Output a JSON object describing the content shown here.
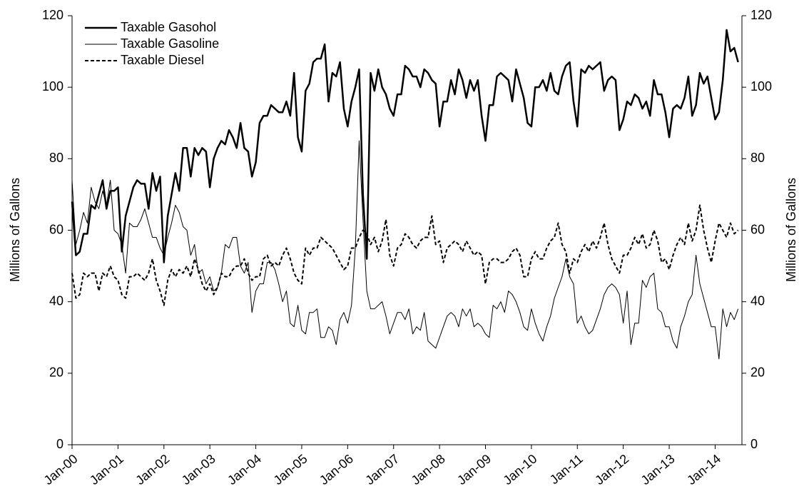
{
  "chart_data": {
    "type": "line",
    "y_label": "Millions of Gallons",
    "y2_label": "Millions of Gallons",
    "categories": [
      "Jan-00",
      null,
      null,
      null,
      null,
      null,
      null,
      null,
      null,
      null,
      null,
      null,
      "Jan-01",
      null,
      null,
      null,
      null,
      null,
      null,
      null,
      null,
      null,
      null,
      null,
      "Jan-02",
      null,
      null,
      null,
      null,
      null,
      null,
      null,
      null,
      null,
      null,
      null,
      "Jan-03",
      null,
      null,
      null,
      null,
      null,
      null,
      null,
      null,
      null,
      null,
      null,
      "Jan-04",
      null,
      null,
      null,
      null,
      null,
      null,
      null,
      null,
      null,
      null,
      null,
      "Jan-05",
      null,
      null,
      null,
      null,
      null,
      null,
      null,
      null,
      null,
      null,
      null,
      "Jan-06",
      null,
      null,
      null,
      null,
      null,
      null,
      null,
      null,
      null,
      null,
      null,
      "Jan-07",
      null,
      null,
      null,
      null,
      null,
      null,
      null,
      null,
      null,
      null,
      null,
      "Jan-08",
      null,
      null,
      null,
      null,
      null,
      null,
      null,
      null,
      null,
      null,
      null,
      "Jan-09",
      null,
      null,
      null,
      null,
      null,
      null,
      null,
      null,
      null,
      null,
      null,
      "Jan-10",
      null,
      null,
      null,
      null,
      null,
      null,
      null,
      null,
      null,
      null,
      null,
      "Jan-11",
      null,
      null,
      null,
      null,
      null,
      null,
      null,
      null,
      null,
      null,
      null,
      "Jan-12",
      null,
      null,
      null,
      null,
      null,
      null,
      null,
      null,
      null,
      null,
      null,
      "Jan-13",
      null,
      null,
      null,
      null,
      null,
      null,
      null,
      null,
      null,
      null,
      null,
      "Jan-14",
      null,
      null,
      null,
      null,
      null,
      null
    ],
    "series": [
      {
        "name": "Taxable Gasohol",
        "color": "#000000",
        "line_width": 2.5,
        "dash": "none",
        "values": [
          68,
          53,
          54,
          59,
          59,
          67,
          66,
          70,
          74,
          66,
          71,
          71,
          72,
          54,
          64,
          68,
          72,
          74,
          73,
          73,
          66,
          76,
          71,
          75,
          51,
          64,
          70,
          76,
          71,
          83,
          83,
          75,
          83,
          81,
          83,
          82,
          72,
          80,
          83,
          85,
          84,
          88,
          86,
          83,
          90,
          83,
          82,
          75,
          79,
          90,
          92,
          92,
          95,
          94,
          93,
          93,
          96,
          92,
          104,
          86,
          82,
          99,
          101,
          107,
          108,
          108,
          112,
          96,
          104,
          103,
          107,
          94,
          89,
          96,
          100,
          105,
          70,
          52,
          104,
          99,
          105,
          100,
          98,
          94,
          92,
          98,
          98,
          106,
          105,
          103,
          103,
          100,
          105,
          104,
          102,
          101,
          89,
          96,
          96,
          102,
          98,
          105,
          102,
          97,
          102,
          99,
          102,
          92,
          85,
          95,
          95,
          103,
          104,
          103,
          102,
          96,
          105,
          101,
          97,
          90,
          89,
          100,
          100,
          102,
          99,
          104,
          99,
          98,
          103,
          106,
          107,
          96,
          89,
          105,
          104,
          106,
          105,
          106,
          107,
          99,
          102,
          103,
          102,
          88,
          91,
          96,
          95,
          98,
          97,
          94,
          96,
          92,
          102,
          98,
          98,
          93,
          86,
          94,
          95,
          94,
          97,
          103,
          92,
          95,
          104,
          101,
          103,
          97,
          91,
          93,
          102,
          116,
          110,
          111,
          107
        ]
      },
      {
        "name": "Taxable Gasoline",
        "color": "#000000",
        "line_width": 1,
        "dash": "none",
        "values": [
          74,
          56,
          60,
          65,
          62,
          72,
          68,
          66,
          71,
          67,
          74,
          60,
          59,
          56,
          48,
          62,
          61,
          61,
          63,
          66,
          62,
          58,
          58,
          55,
          53,
          58,
          62,
          67,
          65,
          61,
          60,
          53,
          56,
          48,
          49,
          45,
          47,
          43,
          44,
          48,
          56,
          55,
          58,
          58,
          50,
          48,
          51,
          37,
          43,
          45,
          45,
          51,
          51,
          49,
          45,
          40,
          43,
          34,
          33,
          39,
          32,
          31,
          37,
          37,
          38,
          30,
          30,
          33,
          32,
          28,
          35,
          37,
          34,
          39,
          55,
          85,
          63,
          43,
          38,
          38,
          39,
          40,
          36,
          31,
          34,
          37,
          37,
          35,
          38,
          31,
          33,
          32,
          37,
          29,
          28,
          27,
          30,
          33,
          36,
          37,
          36,
          33,
          38,
          36,
          38,
          33,
          34,
          33,
          31,
          30,
          39,
          38,
          40,
          37,
          43,
          42,
          40,
          37,
          33,
          32,
          38,
          34,
          31,
          29,
          33,
          36,
          41,
          44,
          47,
          52,
          47,
          45,
          34,
          36,
          33,
          31,
          32,
          35,
          38,
          42,
          44,
          45,
          44,
          42,
          34,
          43,
          28,
          34,
          34,
          46,
          44,
          47,
          48,
          38,
          37,
          33,
          33,
          29,
          27,
          33,
          36,
          40,
          42,
          53,
          45,
          41,
          37,
          33,
          33,
          24,
          38,
          33,
          37,
          35,
          38
        ]
      },
      {
        "name": "Taxable Diesel",
        "color": "#000000",
        "line_width": 2,
        "dash": "5 3",
        "values": [
          48,
          41,
          42,
          48,
          47,
          48,
          48,
          43,
          48,
          47,
          50,
          47,
          46,
          42,
          41,
          47,
          47,
          48,
          47,
          46,
          48,
          52,
          46,
          43,
          39,
          46,
          49,
          47,
          49,
          48,
          50,
          47,
          52,
          49,
          45,
          43,
          45,
          42,
          44,
          48,
          47,
          47,
          49,
          50,
          50,
          52,
          48,
          46,
          47,
          47,
          52,
          53,
          50,
          51,
          50,
          53,
          55,
          52,
          48,
          46,
          45,
          55,
          53,
          55,
          55,
          58,
          57,
          56,
          55,
          53,
          51,
          49,
          50,
          55,
          55,
          58,
          60,
          59,
          56,
          58,
          54,
          57,
          63,
          53,
          50,
          55,
          56,
          59,
          58,
          56,
          55,
          57,
          58,
          58,
          64,
          56,
          57,
          51,
          55,
          56,
          57,
          56,
          54,
          57,
          55,
          53,
          54,
          53,
          45,
          51,
          52,
          52,
          51,
          51,
          52,
          54,
          55,
          53,
          47,
          47,
          52,
          54,
          52,
          52,
          55,
          57,
          58,
          62,
          56,
          54,
          48,
          52,
          51,
          54,
          56,
          54,
          57,
          55,
          58,
          62,
          56,
          52,
          50,
          48,
          53,
          53,
          55,
          58,
          56,
          59,
          55,
          56,
          60,
          57,
          51,
          52,
          49,
          53,
          56,
          58,
          56,
          62,
          57,
          60,
          67,
          60,
          55,
          51,
          57,
          62,
          60,
          58,
          62,
          59,
          60
        ]
      }
    ],
    "ylim": [
      0,
      120
    ],
    "yticks": [
      0,
      20,
      40,
      60,
      80,
      100,
      120
    ],
    "y2lim": [
      0,
      120
    ],
    "y2ticks": [
      0,
      20,
      40,
      60,
      80,
      100,
      120
    ],
    "legend": "top-left",
    "grid": false
  }
}
